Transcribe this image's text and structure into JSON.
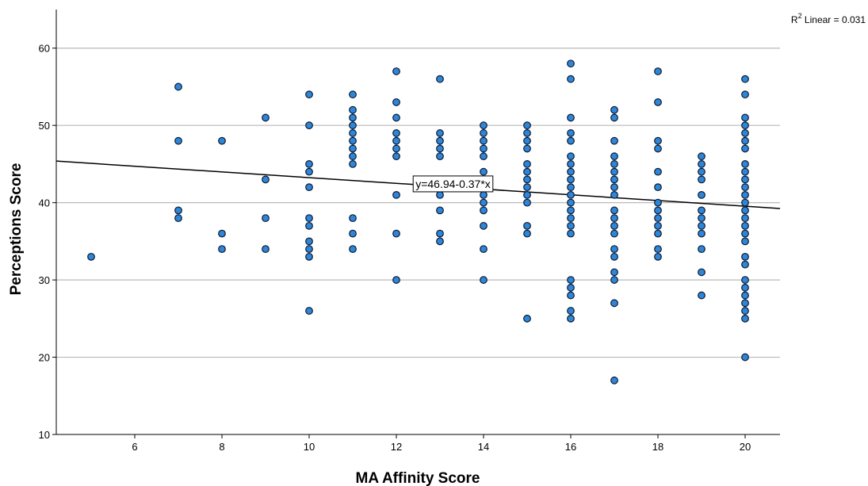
{
  "chart_data": {
    "type": "scatter",
    "title": "",
    "xlabel": "MA Affinity Score",
    "ylabel": "Perceptions Score",
    "xlim": [
      4.2,
      20.8
    ],
    "ylim": [
      10,
      65
    ],
    "xticks": [
      6,
      8,
      10,
      12,
      14,
      16,
      18,
      20
    ],
    "yticks": [
      10,
      20,
      30,
      40,
      50,
      60
    ],
    "grid": "horizontal",
    "r2": {
      "superscript": "2",
      "prefix": "R",
      "text": " Linear = 0.031"
    },
    "fit_line": {
      "intercept": 46.94,
      "slope": -0.37,
      "label": "y=46.94-0.37*x",
      "label_at": [
        13.3,
        42.3
      ]
    },
    "colors": {
      "point_fill": "#2f86d6",
      "point_stroke": "#0b1a33",
      "grid": "#b9b9b9",
      "axis": "#000000",
      "fit_line": "#000000"
    },
    "points": [
      [
        5,
        33
      ],
      [
        7,
        55
      ],
      [
        7,
        48
      ],
      [
        7,
        39
      ],
      [
        7,
        38
      ],
      [
        8,
        48
      ],
      [
        8,
        36
      ],
      [
        8,
        34
      ],
      [
        9,
        51
      ],
      [
        9,
        43
      ],
      [
        9,
        38
      ],
      [
        9,
        34
      ],
      [
        10,
        54
      ],
      [
        10,
        50
      ],
      [
        10,
        45
      ],
      [
        10,
        44
      ],
      [
        10,
        42
      ],
      [
        10,
        38
      ],
      [
        10,
        37
      ],
      [
        10,
        35
      ],
      [
        10,
        34
      ],
      [
        10,
        33
      ],
      [
        10,
        26
      ],
      [
        11,
        54
      ],
      [
        11,
        52
      ],
      [
        11,
        51
      ],
      [
        11,
        50
      ],
      [
        11,
        49
      ],
      [
        11,
        48
      ],
      [
        11,
        47
      ],
      [
        11,
        46
      ],
      [
        11,
        45
      ],
      [
        11,
        38
      ],
      [
        11,
        36
      ],
      [
        11,
        34
      ],
      [
        12,
        57
      ],
      [
        12,
        53
      ],
      [
        12,
        51
      ],
      [
        12,
        49
      ],
      [
        12,
        48
      ],
      [
        12,
        47
      ],
      [
        12,
        46
      ],
      [
        12,
        41
      ],
      [
        12,
        36
      ],
      [
        12,
        30
      ],
      [
        13,
        56
      ],
      [
        13,
        49
      ],
      [
        13,
        48
      ],
      [
        13,
        47
      ],
      [
        13,
        46
      ],
      [
        13,
        41
      ],
      [
        13,
        39
      ],
      [
        13,
        36
      ],
      [
        13,
        35
      ],
      [
        14,
        50
      ],
      [
        14,
        49
      ],
      [
        14,
        48
      ],
      [
        14,
        47
      ],
      [
        14,
        46
      ],
      [
        14,
        44
      ],
      [
        14,
        43
      ],
      [
        14,
        42
      ],
      [
        14,
        41
      ],
      [
        14,
        40
      ],
      [
        14,
        39
      ],
      [
        14,
        37
      ],
      [
        14,
        34
      ],
      [
        14,
        30
      ],
      [
        15,
        50
      ],
      [
        15,
        49
      ],
      [
        15,
        48
      ],
      [
        15,
        47
      ],
      [
        15,
        45
      ],
      [
        15,
        44
      ],
      [
        15,
        43
      ],
      [
        15,
        42
      ],
      [
        15,
        41
      ],
      [
        15,
        40
      ],
      [
        15,
        37
      ],
      [
        15,
        36
      ],
      [
        15,
        25
      ],
      [
        16,
        58
      ],
      [
        16,
        56
      ],
      [
        16,
        51
      ],
      [
        16,
        49
      ],
      [
        16,
        48
      ],
      [
        16,
        46
      ],
      [
        16,
        45
      ],
      [
        16,
        44
      ],
      [
        16,
        43
      ],
      [
        16,
        42
      ],
      [
        16,
        41
      ],
      [
        16,
        40
      ],
      [
        16,
        39
      ],
      [
        16,
        38
      ],
      [
        16,
        37
      ],
      [
        16,
        36
      ],
      [
        16,
        30
      ],
      [
        16,
        29
      ],
      [
        16,
        28
      ],
      [
        16,
        26
      ],
      [
        16,
        25
      ],
      [
        17,
        52
      ],
      [
        17,
        51
      ],
      [
        17,
        48
      ],
      [
        17,
        46
      ],
      [
        17,
        45
      ],
      [
        17,
        44
      ],
      [
        17,
        43
      ],
      [
        17,
        42
      ],
      [
        17,
        41
      ],
      [
        17,
        39
      ],
      [
        17,
        38
      ],
      [
        17,
        37
      ],
      [
        17,
        36
      ],
      [
        17,
        34
      ],
      [
        17,
        33
      ],
      [
        17,
        31
      ],
      [
        17,
        30
      ],
      [
        17,
        27
      ],
      [
        17,
        17
      ],
      [
        18,
        57
      ],
      [
        18,
        53
      ],
      [
        18,
        48
      ],
      [
        18,
        47
      ],
      [
        18,
        44
      ],
      [
        18,
        42
      ],
      [
        18,
        40
      ],
      [
        18,
        39
      ],
      [
        18,
        38
      ],
      [
        18,
        37
      ],
      [
        18,
        36
      ],
      [
        18,
        34
      ],
      [
        18,
        33
      ],
      [
        19,
        46
      ],
      [
        19,
        45
      ],
      [
        19,
        44
      ],
      [
        19,
        43
      ],
      [
        19,
        41
      ],
      [
        19,
        39
      ],
      [
        19,
        38
      ],
      [
        19,
        37
      ],
      [
        19,
        36
      ],
      [
        19,
        34
      ],
      [
        19,
        31
      ],
      [
        19,
        28
      ],
      [
        20,
        56
      ],
      [
        20,
        54
      ],
      [
        20,
        51
      ],
      [
        20,
        50
      ],
      [
        20,
        49
      ],
      [
        20,
        48
      ],
      [
        20,
        47
      ],
      [
        20,
        45
      ],
      [
        20,
        44
      ],
      [
        20,
        43
      ],
      [
        20,
        42
      ],
      [
        20,
        41
      ],
      [
        20,
        40
      ],
      [
        20,
        39
      ],
      [
        20,
        38
      ],
      [
        20,
        37
      ],
      [
        20,
        36
      ],
      [
        20,
        35
      ],
      [
        20,
        33
      ],
      [
        20,
        32
      ],
      [
        20,
        30
      ],
      [
        20,
        29
      ],
      [
        20,
        28
      ],
      [
        20,
        27
      ],
      [
        20,
        26
      ],
      [
        20,
        25
      ],
      [
        20,
        20
      ]
    ]
  }
}
